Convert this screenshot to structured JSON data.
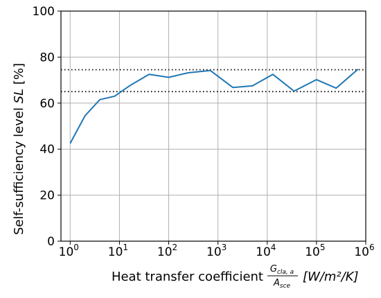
{
  "chart_data": {
    "type": "line",
    "title": "",
    "xlabel": {
      "prefix": "Heat transfer coefficient",
      "frac_num": "G",
      "frac_num_sub": "cla, a",
      "frac_den": "A",
      "frac_den_sub": "sce",
      "units": "[W/m²/K]"
    },
    "ylabel": {
      "text": "Self-sufficiency level",
      "symbol": "SL",
      "units": "[%]"
    },
    "x_scale": "log",
    "xlim": [
      0.65,
      1000000
    ],
    "ylim": [
      0,
      100
    ],
    "x_ticks": [
      {
        "base": "10",
        "exp": "0",
        "value": 1
      },
      {
        "base": "10",
        "exp": "1",
        "value": 10
      },
      {
        "base": "10",
        "exp": "2",
        "value": 100
      },
      {
        "base": "10",
        "exp": "3",
        "value": 1000
      },
      {
        "base": "10",
        "exp": "4",
        "value": 10000
      },
      {
        "base": "10",
        "exp": "5",
        "value": 100000
      },
      {
        "base": "10",
        "exp": "6",
        "value": 1000000
      }
    ],
    "y_ticks": [
      "0",
      "20",
      "40",
      "60",
      "80",
      "100"
    ],
    "grid": true,
    "series": [
      {
        "color": "#1f77b4",
        "x": [
          1,
          2,
          4,
          8,
          16,
          40,
          100,
          250,
          700,
          2000,
          5000,
          13000,
          35000,
          100000,
          250000,
          700000
        ],
        "y": [
          42.5,
          54.5,
          61.5,
          63,
          67.5,
          72.5,
          71.2,
          73.2,
          74.2,
          66.8,
          67.5,
          72.5,
          65.2,
          70.2,
          66.5,
          74.8
        ]
      }
    ],
    "reference_lines": [
      {
        "y": 74.5,
        "style": "dotted",
        "color": "#000000"
      },
      {
        "y": 65,
        "style": "dotted",
        "color": "#000000"
      }
    ]
  }
}
